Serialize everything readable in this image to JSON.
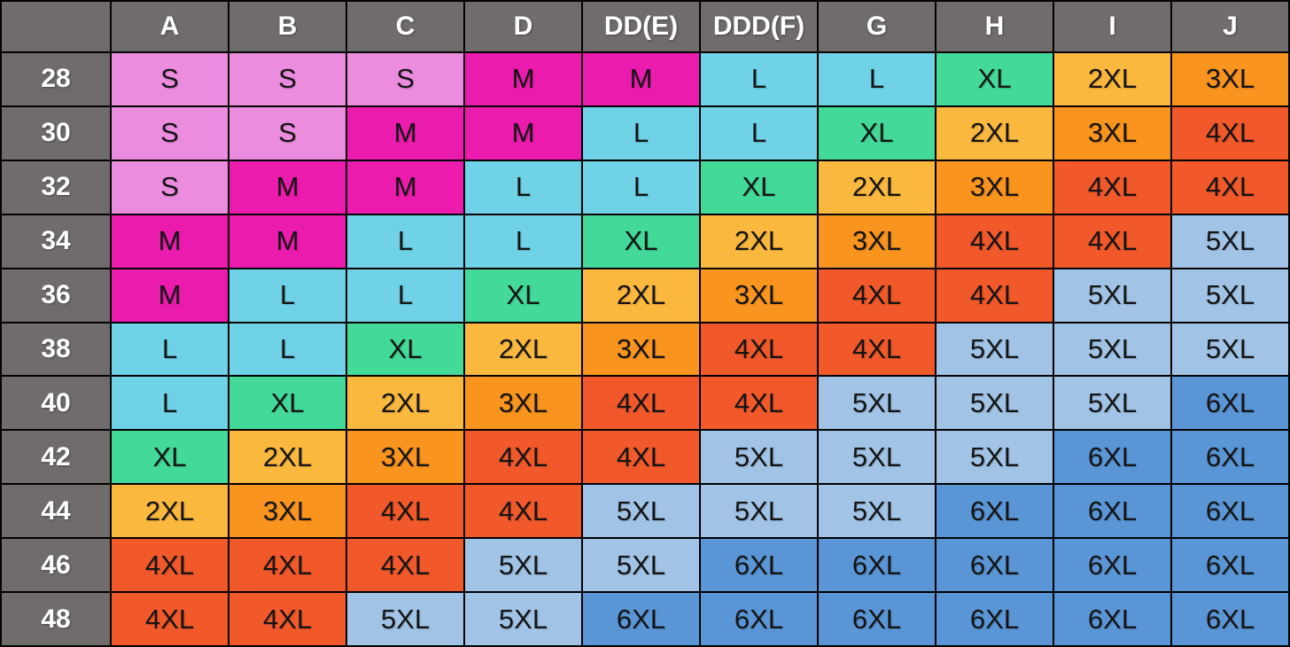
{
  "chart_data": {
    "type": "table",
    "corner_label": "",
    "columns": [
      "A",
      "B",
      "C",
      "D",
      "DD(E)",
      "DDD(F)",
      "G",
      "H",
      "I",
      "J"
    ],
    "rows": [
      "28",
      "30",
      "32",
      "34",
      "36",
      "38",
      "40",
      "42",
      "44",
      "46",
      "48"
    ],
    "cells": [
      [
        "S",
        "S",
        "S",
        "M",
        "M",
        "L",
        "L",
        "XL",
        "2XL",
        "3XL"
      ],
      [
        "S",
        "S",
        "M",
        "M",
        "L",
        "L",
        "XL",
        "2XL",
        "3XL",
        "4XL"
      ],
      [
        "S",
        "M",
        "M",
        "L",
        "L",
        "XL",
        "2XL",
        "3XL",
        "4XL",
        "4XL"
      ],
      [
        "M",
        "M",
        "L",
        "L",
        "XL",
        "2XL",
        "3XL",
        "4XL",
        "4XL",
        "5XL"
      ],
      [
        "M",
        "L",
        "L",
        "XL",
        "2XL",
        "3XL",
        "4XL",
        "4XL",
        "5XL",
        "5XL"
      ],
      [
        "L",
        "L",
        "XL",
        "2XL",
        "3XL",
        "4XL",
        "4XL",
        "5XL",
        "5XL",
        "5XL"
      ],
      [
        "L",
        "XL",
        "2XL",
        "3XL",
        "4XL",
        "4XL",
        "5XL",
        "5XL",
        "5XL",
        "6XL"
      ],
      [
        "XL",
        "2XL",
        "3XL",
        "4XL",
        "4XL",
        "5XL",
        "5XL",
        "5XL",
        "6XL",
        "6XL"
      ],
      [
        "2XL",
        "3XL",
        "4XL",
        "4XL",
        "5XL",
        "5XL",
        "5XL",
        "6XL",
        "6XL",
        "6XL"
      ],
      [
        "4XL",
        "4XL",
        "4XL",
        "5XL",
        "5XL",
        "6XL",
        "6XL",
        "6XL",
        "6XL",
        "6XL"
      ],
      [
        "4XL",
        "4XL",
        "5XL",
        "5XL",
        "6XL",
        "6XL",
        "6XL",
        "6XL",
        "6XL",
        "6XL"
      ]
    ],
    "size_colors": {
      "S": "#EC8CDF",
      "M": "#EB1CAD",
      "L": "#70D2E7",
      "XL": "#43D998",
      "2XL": "#FBB83E",
      "3XL": "#F9941E",
      "4XL": "#F1592A",
      "5XL": "#A1C3E6",
      "6XL": "#5A96D6"
    },
    "header_bg": "#716C6C",
    "header_text_color": "#FFFFFF",
    "cell_text_color": "#141414",
    "grid_color": "#000000",
    "layout": {
      "grid": "on",
      "header_row": true,
      "header_column": true
    }
  }
}
